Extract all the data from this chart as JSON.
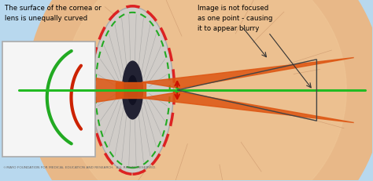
{
  "bg_color": "#b8d8ee",
  "eye_bg_color": "#e8b888",
  "eye_bg_color2": "#f0c898",
  "inset_bg": "#f0f0f0",
  "inset_border": "#aaaaaa",
  "title_text1": "The surface of the cornea or",
  "title_text2": "lens is unequally curved",
  "right_text1": "Image is not focused",
  "right_text2": "as one point - causing",
  "right_text3": "it to appear blurry",
  "footer_text": "©MAYO FOUNDATION FOR MEDICAL EDUCATION AND RESEARCH.  ALL RIGHTS RESERVED.",
  "green_color": "#22aa22",
  "red_color": "#cc2200",
  "orange_color": "#dd5511",
  "orange_color2": "#ee7733",
  "dashed_red": "#dd2222",
  "dashed_green": "#22aa22",
  "arrow_color": "#cc1100",
  "green_line_color": "#22bb22",
  "figsize": [
    4.74,
    2.32
  ],
  "dpi": 100
}
